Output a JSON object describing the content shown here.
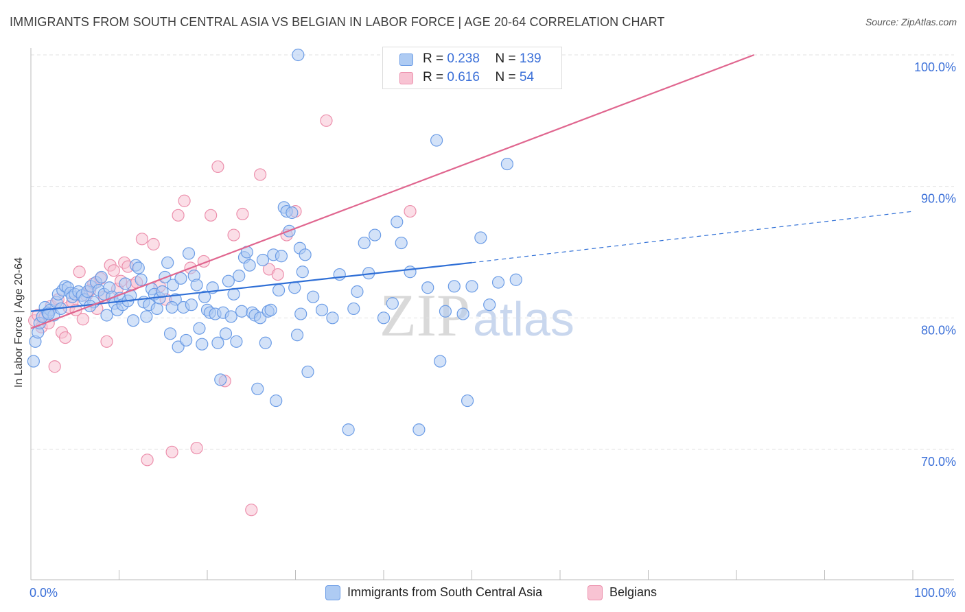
{
  "header": {
    "title": "IMMIGRANTS FROM SOUTH CENTRAL ASIA VS BELGIAN IN LABOR FORCE | AGE 20-64 CORRELATION CHART",
    "source": "Source: ZipAtlas.com"
  },
  "watermark": {
    "zip": "ZIP",
    "atlas": "atlas"
  },
  "legend_top": {
    "rows": [
      {
        "r_label": "R =",
        "r_value": "0.238",
        "n_label": "N =",
        "n_value": "139"
      },
      {
        "r_label": "R =",
        "r_value": "0.616",
        "n_label": "N =",
        "n_value": "54"
      }
    ]
  },
  "legend_bottom": {
    "items": [
      "Immigrants from South Central Asia",
      "Belgians"
    ]
  },
  "colors": {
    "blue_fill": "#aecbf3",
    "blue_stroke": "#6b9ce6",
    "blue_line": "#2f6fd6",
    "pink_fill": "#f8c3d3",
    "pink_stroke": "#ec8fac",
    "pink_line": "#e0668f",
    "tick_text": "#3a6fd8",
    "grid": "#e2e2e2"
  },
  "chart_data": {
    "type": "scatter",
    "title": "IMMIGRANTS FROM SOUTH CENTRAL ASIA VS BELGIAN IN LABOR FORCE | AGE 20-64 CORRELATION CHART",
    "xlabel": "",
    "ylabel": "In Labor Force | Age 20-64",
    "xlim": [
      0,
      100
    ],
    "ylim": [
      60,
      102
    ],
    "x_tick_labels": [
      "0.0%",
      "100.0%"
    ],
    "y_ticks": [
      70,
      80,
      90,
      100
    ],
    "y_tick_labels": [
      "70.0%",
      "80.0%",
      "90.0%",
      "100.0%"
    ],
    "grid": true,
    "legend_position": "top-center",
    "series": [
      {
        "name": "Immigrants from South Central Asia",
        "r": 0.238,
        "n": 139,
        "trend": {
          "x": [
            0,
            50
          ],
          "y": [
            80.5,
            84.2
          ],
          "dashed_to": [
            100,
            88.1
          ]
        },
        "points": [
          [
            0.3,
            76.7
          ],
          [
            0.5,
            78.2
          ],
          [
            0.8,
            78.9
          ],
          [
            1.0,
            79.6
          ],
          [
            1.3,
            80.1
          ],
          [
            1.6,
            80.8
          ],
          [
            1.9,
            80.4
          ],
          [
            2.2,
            80.6
          ],
          [
            2.6,
            80.2
          ],
          [
            2.9,
            81.2
          ],
          [
            3.1,
            81.8
          ],
          [
            3.4,
            80.7
          ],
          [
            3.6,
            82.1
          ],
          [
            3.9,
            82.4
          ],
          [
            4.2,
            82.3
          ],
          [
            4.5,
            81.9
          ],
          [
            4.7,
            81.6
          ],
          [
            5.0,
            81.8
          ],
          [
            5.4,
            82.0
          ],
          [
            5.8,
            81.7
          ],
          [
            6.1,
            81.4
          ],
          [
            6.4,
            82.0
          ],
          [
            6.8,
            82.4
          ],
          [
            7.1,
            81.2
          ],
          [
            7.4,
            82.7
          ],
          [
            7.7,
            82.1
          ],
          [
            8.0,
            83.1
          ],
          [
            8.3,
            81.8
          ],
          [
            8.6,
            80.2
          ],
          [
            8.9,
            82.3
          ],
          [
            9.2,
            81.6
          ],
          [
            9.5,
            81.1
          ],
          [
            9.8,
            80.6
          ],
          [
            10.1,
            81.5
          ],
          [
            10.4,
            81.0
          ],
          [
            10.7,
            82.6
          ],
          [
            11.0,
            81.3
          ],
          [
            11.3,
            81.7
          ],
          [
            11.6,
            79.8
          ],
          [
            11.9,
            84.0
          ],
          [
            12.2,
            83.8
          ],
          [
            12.5,
            82.9
          ],
          [
            12.8,
            81.2
          ],
          [
            13.1,
            80.1
          ],
          [
            13.4,
            81.0
          ],
          [
            13.7,
            82.2
          ],
          [
            14.0,
            81.8
          ],
          [
            14.3,
            80.7
          ],
          [
            14.6,
            81.5
          ],
          [
            14.9,
            82.0
          ],
          [
            15.2,
            83.1
          ],
          [
            15.5,
            84.2
          ],
          [
            15.8,
            78.8
          ],
          [
            16.1,
            82.5
          ],
          [
            16.4,
            81.4
          ],
          [
            16.7,
            77.8
          ],
          [
            17.0,
            83.0
          ],
          [
            17.3,
            80.8
          ],
          [
            17.6,
            78.3
          ],
          [
            17.9,
            84.9
          ],
          [
            18.2,
            81.0
          ],
          [
            18.5,
            83.2
          ],
          [
            18.8,
            82.5
          ],
          [
            19.1,
            79.2
          ],
          [
            19.4,
            78.0
          ],
          [
            19.7,
            81.6
          ],
          [
            20.0,
            80.6
          ],
          [
            20.3,
            80.4
          ],
          [
            20.6,
            82.3
          ],
          [
            20.9,
            80.3
          ],
          [
            21.2,
            78.1
          ],
          [
            21.5,
            75.3
          ],
          [
            21.8,
            80.4
          ],
          [
            22.1,
            78.8
          ],
          [
            22.4,
            82.8
          ],
          [
            22.7,
            80.1
          ],
          [
            23.0,
            81.8
          ],
          [
            23.3,
            78.2
          ],
          [
            23.6,
            83.2
          ],
          [
            23.9,
            80.5
          ],
          [
            24.2,
            84.6
          ],
          [
            24.5,
            85.0
          ],
          [
            24.8,
            84.0
          ],
          [
            25.1,
            80.4
          ],
          [
            25.4,
            80.2
          ],
          [
            25.7,
            74.6
          ],
          [
            26.0,
            80.0
          ],
          [
            26.3,
            84.4
          ],
          [
            26.6,
            78.1
          ],
          [
            26.9,
            80.5
          ],
          [
            27.2,
            80.6
          ],
          [
            27.5,
            84.8
          ],
          [
            27.8,
            73.7
          ],
          [
            28.1,
            82.1
          ],
          [
            28.4,
            84.7
          ],
          [
            28.7,
            88.4
          ],
          [
            29.0,
            88.1
          ],
          [
            29.3,
            86.6
          ],
          [
            29.6,
            88.0
          ],
          [
            29.9,
            82.3
          ],
          [
            30.2,
            78.7
          ],
          [
            30.5,
            85.3
          ],
          [
            30.8,
            83.5
          ],
          [
            31.1,
            84.8
          ],
          [
            31.4,
            75.9
          ],
          [
            32.0,
            81.6
          ],
          [
            33.0,
            80.6
          ],
          [
            34.2,
            80.0
          ],
          [
            35.0,
            83.3
          ],
          [
            36.0,
            71.5
          ],
          [
            37.0,
            82.0
          ],
          [
            37.8,
            85.7
          ],
          [
            38.3,
            83.4
          ],
          [
            39.0,
            86.3
          ],
          [
            40.0,
            80.0
          ],
          [
            41.0,
            81.1
          ],
          [
            41.5,
            87.3
          ],
          [
            42.0,
            85.7
          ],
          [
            43.0,
            83.5
          ],
          [
            44.0,
            71.5
          ],
          [
            45.0,
            82.3
          ],
          [
            46.0,
            93.5
          ],
          [
            46.4,
            76.7
          ],
          [
            47.0,
            80.5
          ],
          [
            48.0,
            82.4
          ],
          [
            49.0,
            80.3
          ],
          [
            49.5,
            73.7
          ],
          [
            50.0,
            82.4
          ],
          [
            51.0,
            86.1
          ],
          [
            52.0,
            81.0
          ],
          [
            53.0,
            82.7
          ],
          [
            54.0,
            91.7
          ],
          [
            55.0,
            82.9
          ],
          [
            2.0,
            80.3
          ],
          [
            6.7,
            80.9
          ],
          [
            16.0,
            80.8
          ],
          [
            30.6,
            80.3
          ],
          [
            36.6,
            80.7
          ],
          [
            30.3,
            100.0
          ]
        ]
      },
      {
        "name": "Belgians",
        "r": 0.616,
        "n": 54,
        "trend": {
          "x": [
            0,
            82
          ],
          "y": [
            79.2,
            100.0
          ]
        },
        "points": [
          [
            0.4,
            79.8
          ],
          [
            0.8,
            80.2
          ],
          [
            1.2,
            79.3
          ],
          [
            1.6,
            80.1
          ],
          [
            2.0,
            79.6
          ],
          [
            2.3,
            80.9
          ],
          [
            2.7,
            76.3
          ],
          [
            3.1,
            81.4
          ],
          [
            3.5,
            78.9
          ],
          [
            3.9,
            78.5
          ],
          [
            4.3,
            80.8
          ],
          [
            4.7,
            81.2
          ],
          [
            5.1,
            80.6
          ],
          [
            5.5,
            83.5
          ],
          [
            5.9,
            79.9
          ],
          [
            6.3,
            81.7
          ],
          [
            6.7,
            82.1
          ],
          [
            7.1,
            82.6
          ],
          [
            7.5,
            80.7
          ],
          [
            7.9,
            83.0
          ],
          [
            8.3,
            81.6
          ],
          [
            8.6,
            78.2
          ],
          [
            9.0,
            84.0
          ],
          [
            9.4,
            83.6
          ],
          [
            9.8,
            82.2
          ],
          [
            10.2,
            82.8
          ],
          [
            10.6,
            84.2
          ],
          [
            11.0,
            83.9
          ],
          [
            11.5,
            82.5
          ],
          [
            12.0,
            82.7
          ],
          [
            12.6,
            86.0
          ],
          [
            13.2,
            69.2
          ],
          [
            13.9,
            85.6
          ],
          [
            14.6,
            82.4
          ],
          [
            15.3,
            81.4
          ],
          [
            16.0,
            69.8
          ],
          [
            16.7,
            87.8
          ],
          [
            17.4,
            88.9
          ],
          [
            18.1,
            83.8
          ],
          [
            18.8,
            70.1
          ],
          [
            19.6,
            84.3
          ],
          [
            20.4,
            87.8
          ],
          [
            21.2,
            91.5
          ],
          [
            22.0,
            75.2
          ],
          [
            23.0,
            86.3
          ],
          [
            24.0,
            87.9
          ],
          [
            25.0,
            65.4
          ],
          [
            26.0,
            90.9
          ],
          [
            27.0,
            83.7
          ],
          [
            28.0,
            83.3
          ],
          [
            29.0,
            86.3
          ],
          [
            30.0,
            88.1
          ],
          [
            33.5,
            95.0
          ],
          [
            43.0,
            88.1
          ]
        ]
      }
    ]
  }
}
